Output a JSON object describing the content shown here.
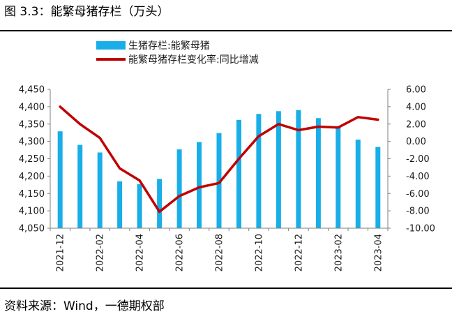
{
  "figure": {
    "title": "图 3.3：能繁母猪存栏（万头）",
    "source": "资料来源：Wind，一德期权部"
  },
  "chart_data": {
    "type": "bar+line",
    "title": "",
    "categories": [
      "2021-12",
      "2022-01",
      "2022-02",
      "2022-03",
      "2022-04",
      "2022-05",
      "2022-06",
      "2022-07",
      "2022-08",
      "2022-09",
      "2022-10",
      "2022-11",
      "2022-12",
      "2023-01",
      "2023-02",
      "2023-03",
      "2023-04"
    ],
    "x_tick_labels": [
      "2021-12",
      "2022-02",
      "2022-04",
      "2022-06",
      "2022-08",
      "2022-10",
      "2022-12",
      "2023-02",
      "2023-04"
    ],
    "series": [
      {
        "name": "生猪存栏:能繁母猪",
        "type": "bar",
        "axis": "left",
        "color": "#19AEE8",
        "values": [
          4329,
          4290,
          4268,
          4185,
          4177,
          4192,
          4277,
          4298,
          4324,
          4362,
          4379,
          4387,
          4390,
          4367,
          4343,
          4305,
          4284
        ]
      },
      {
        "name": "能繁母猪存栏变化率:同比增减",
        "type": "line",
        "axis": "right",
        "color": "#C00000",
        "values": [
          4.0,
          2.0,
          0.4,
          -3.1,
          -4.5,
          -8.1,
          -6.3,
          -5.3,
          -4.8,
          -2.0,
          0.6,
          2.0,
          1.3,
          1.7,
          1.6,
          2.8,
          2.5
        ]
      }
    ],
    "y_left": {
      "min": 4050,
      "max": 4450,
      "ticks": [
        "4,050",
        "4,100",
        "4,150",
        "4,200",
        "4,250",
        "4,300",
        "4,350",
        "4,400",
        "4,450"
      ]
    },
    "y_right": {
      "min": -10,
      "max": 6,
      "ticks": [
        "-10.00",
        "-8.00",
        "-6.00",
        "-4.00",
        "-2.00",
        "0.00",
        "2.00",
        "4.00",
        "6.00"
      ]
    },
    "grid": false,
    "legend_position": "top-center"
  }
}
